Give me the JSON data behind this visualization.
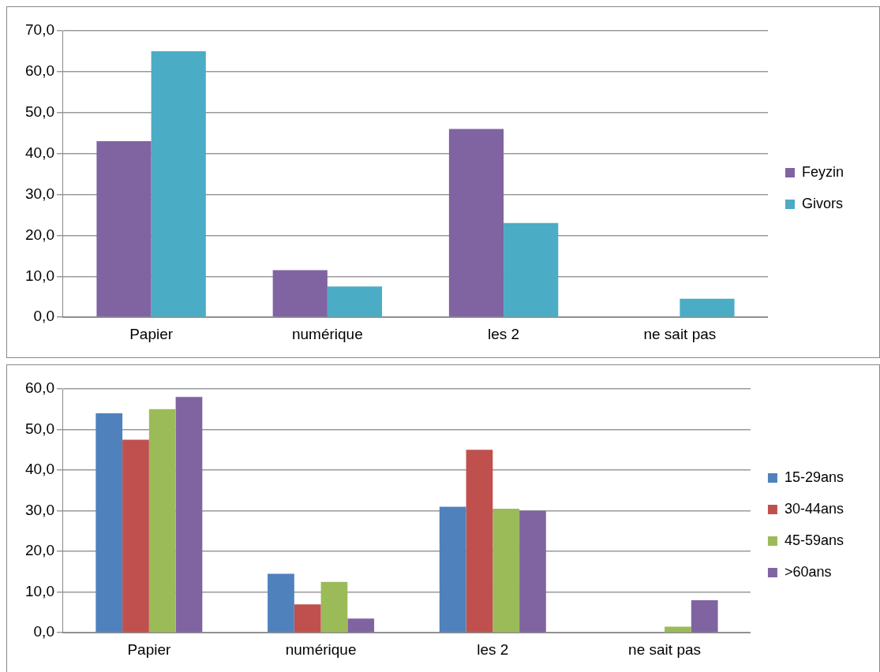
{
  "chart_data": [
    {
      "type": "bar",
      "categories": [
        "Papier",
        "numérique",
        "les 2",
        "ne sait pas"
      ],
      "series": [
        {
          "name": "Feyzin",
          "color": "#8064a2",
          "values": [
            43,
            11.5,
            46,
            0
          ]
        },
        {
          "name": "Givors",
          "color": "#4bacc6",
          "values": [
            65,
            7.5,
            23,
            4.5
          ]
        }
      ],
      "ylim": [
        0,
        70
      ],
      "yticks": [
        {
          "value": 0,
          "label": "0,0"
        },
        {
          "value": 10,
          "label": "10,0"
        },
        {
          "value": 20,
          "label": "20,0"
        },
        {
          "value": 30,
          "label": "30,0"
        },
        {
          "value": 40,
          "label": "40,0"
        },
        {
          "value": 50,
          "label": "50,0"
        },
        {
          "value": 60,
          "label": "60,0"
        },
        {
          "value": 70,
          "label": "70,0"
        }
      ],
      "grid": "y",
      "legend": "right"
    },
    {
      "type": "bar",
      "categories": [
        "Papier",
        "numérique",
        "les 2",
        "ne sait pas"
      ],
      "series": [
        {
          "name": "15-29ans",
          "color": "#4f81bd",
          "values": [
            54,
            14.5,
            31,
            0
          ]
        },
        {
          "name": "30-44ans",
          "color": "#c0504d",
          "values": [
            47.5,
            7,
            45,
            0
          ]
        },
        {
          "name": "45-59ans",
          "color": "#9bbb59",
          "values": [
            55,
            12.5,
            30.5,
            1.5
          ]
        },
        {
          "name": ">60ans",
          "color": "#8064a2",
          "values": [
            58,
            3.5,
            30,
            8
          ]
        }
      ],
      "ylim": [
        0,
        60
      ],
      "yticks": [
        {
          "value": 0,
          "label": "0,0"
        },
        {
          "value": 10,
          "label": "10,0"
        },
        {
          "value": 20,
          "label": "20,0"
        },
        {
          "value": 30,
          "label": "30,0"
        },
        {
          "value": 40,
          "label": "40,0"
        },
        {
          "value": 50,
          "label": "50,0"
        },
        {
          "value": 60,
          "label": "60,0"
        }
      ],
      "grid": "y",
      "legend": "right"
    }
  ]
}
